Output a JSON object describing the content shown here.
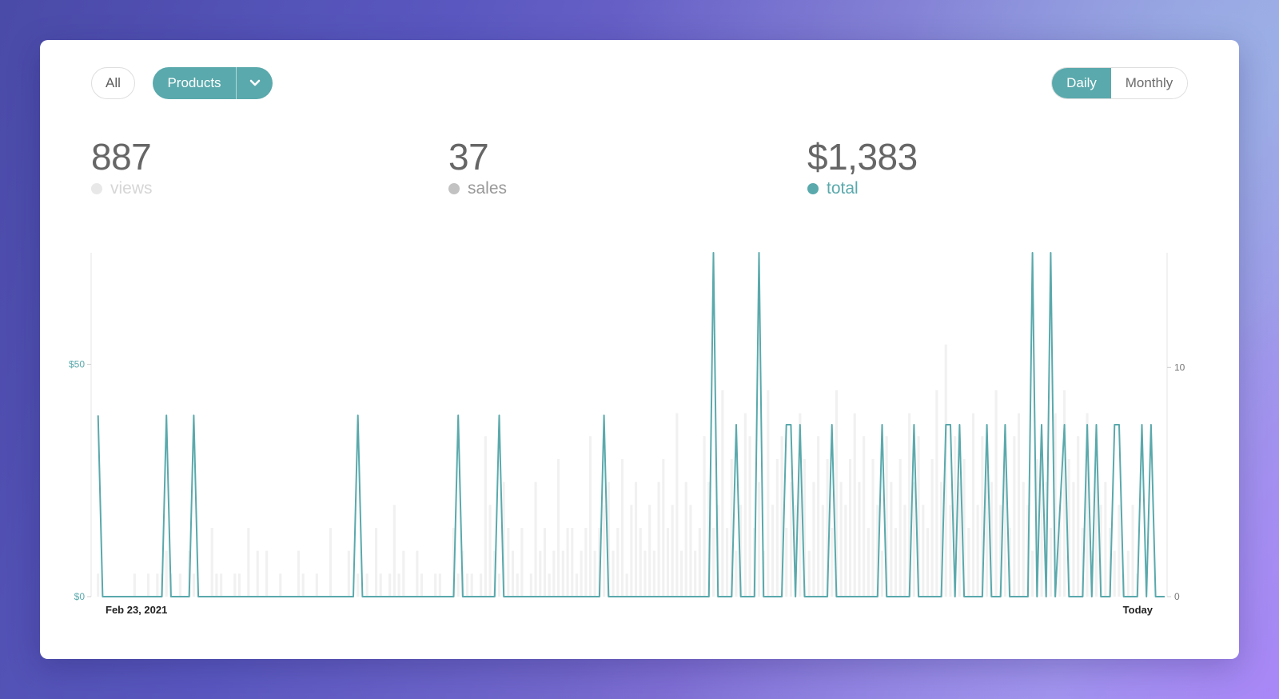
{
  "filters": {
    "all_label": "All",
    "products_label": "Products"
  },
  "period": {
    "daily_label": "Daily",
    "monthly_label": "Monthly"
  },
  "stats": [
    {
      "value": "887",
      "label": "views",
      "color": "#e8e8e8",
      "label_color": "#d6d6d6"
    },
    {
      "value": "37",
      "label": "sales",
      "color": "#c2c2c2",
      "label_color": "#999999"
    },
    {
      "value": "$1,383",
      "label": "total",
      "color": "#5aa9ac",
      "label_color": "#5aa9ac"
    }
  ],
  "colors": {
    "accent": "#5aa9ac",
    "bars": "#f1f1f1",
    "axis": "#e6e6e6"
  },
  "chart_data": {
    "type": "line",
    "x_start_label": "Feb 23, 2021",
    "x_end_label": "Today",
    "left_axis": {
      "ticks": [
        {
          "value": 0,
          "label": "$0"
        },
        {
          "value": 50,
          "label": "$50"
        }
      ],
      "range": [
        0,
        74
      ]
    },
    "right_axis": {
      "ticks": [
        {
          "value": 0,
          "label": "0"
        },
        {
          "value": 10,
          "label": "10"
        }
      ],
      "range": [
        0,
        15
      ]
    },
    "total_series": {
      "name": "total",
      "points": [
        [
          1,
          39
        ],
        [
          2,
          0
        ],
        [
          15,
          0
        ],
        [
          16,
          39
        ],
        [
          17,
          0
        ],
        [
          21,
          0
        ],
        [
          22,
          39
        ],
        [
          23,
          0
        ],
        [
          57,
          0
        ],
        [
          58,
          39
        ],
        [
          59,
          0
        ],
        [
          79,
          0
        ],
        [
          80,
          39
        ],
        [
          81,
          0
        ],
        [
          88,
          0
        ],
        [
          89,
          39
        ],
        [
          90,
          0
        ],
        [
          111,
          0
        ],
        [
          112,
          39
        ],
        [
          113,
          0
        ],
        [
          135,
          0
        ],
        [
          136,
          74
        ],
        [
          137,
          0
        ],
        [
          140,
          0
        ],
        [
          141,
          37
        ],
        [
          142,
          0
        ],
        [
          145,
          0
        ],
        [
          146,
          74
        ],
        [
          147,
          0
        ],
        [
          151,
          0
        ],
        [
          152,
          37
        ],
        [
          153,
          37
        ],
        [
          154,
          0
        ],
        [
          155,
          37
        ],
        [
          156,
          0
        ],
        [
          161,
          0
        ],
        [
          162,
          37
        ],
        [
          163,
          0
        ],
        [
          172,
          0
        ],
        [
          173,
          37
        ],
        [
          174,
          0
        ],
        [
          179,
          0
        ],
        [
          180,
          37
        ],
        [
          181,
          0
        ],
        [
          186,
          0
        ],
        [
          187,
          37
        ],
        [
          188,
          37
        ],
        [
          189,
          0
        ],
        [
          190,
          37
        ],
        [
          191,
          0
        ],
        [
          195,
          0
        ],
        [
          196,
          37
        ],
        [
          197,
          0
        ],
        [
          199,
          0
        ],
        [
          200,
          37
        ],
        [
          201,
          0
        ],
        [
          205,
          0
        ],
        [
          206,
          74
        ],
        [
          207,
          0
        ],
        [
          208,
          37
        ],
        [
          209,
          0
        ],
        [
          210,
          74
        ],
        [
          211,
          0
        ],
        [
          213,
          37
        ],
        [
          214,
          0
        ],
        [
          217,
          0
        ],
        [
          218,
          37
        ],
        [
          219,
          0
        ],
        [
          220,
          37
        ],
        [
          221,
          0
        ],
        [
          223,
          0
        ],
        [
          224,
          37
        ],
        [
          225,
          37
        ],
        [
          226,
          0
        ],
        [
          229,
          0
        ],
        [
          230,
          37
        ],
        [
          231,
          0
        ],
        [
          232,
          37
        ],
        [
          233,
          0
        ],
        [
          235,
          0
        ]
      ]
    },
    "views_series": {
      "name": "views",
      "values": [
        0,
        1,
        0,
        0,
        0,
        0,
        0,
        0,
        0,
        1,
        0,
        0,
        1,
        0,
        1,
        1,
        2,
        1,
        0,
        1,
        0,
        2,
        1,
        0,
        0,
        0,
        3,
        1,
        1,
        0,
        0,
        1,
        1,
        0,
        3,
        0,
        2,
        0,
        2,
        0,
        0,
        1,
        0,
        0,
        0,
        2,
        1,
        0,
        0,
        1,
        0,
        0,
        3,
        0,
        0,
        0,
        2,
        0,
        1,
        0,
        1,
        0,
        3,
        1,
        0,
        1,
        4,
        1,
        2,
        0,
        0,
        2,
        1,
        0,
        0,
        1,
        1,
        0,
        0,
        3,
        1,
        2,
        1,
        1,
        0,
        1,
        7,
        4,
        2,
        1,
        5,
        3,
        2,
        1,
        3,
        0,
        1,
        5,
        2,
        3,
        1,
        2,
        6,
        2,
        3,
        3,
        1,
        2,
        3,
        7,
        2,
        3,
        4,
        5,
        2,
        3,
        6,
        1,
        4,
        5,
        3,
        2,
        4,
        2,
        5,
        6,
        3,
        4,
        8,
        2,
        5,
        4,
        2,
        3,
        7,
        5,
        3,
        4,
        9,
        3,
        6,
        2,
        4,
        8,
        7,
        3,
        5,
        2,
        9,
        4,
        6,
        7,
        3,
        5,
        4,
        8,
        6,
        2,
        5,
        7,
        4,
        6,
        3,
        9,
        5,
        4,
        6,
        8,
        5,
        7,
        3,
        6,
        4,
        2,
        7,
        5,
        3,
        6,
        4,
        8,
        5,
        7,
        4,
        3,
        6,
        9,
        5,
        11,
        4,
        7,
        5,
        6,
        3,
        8,
        4,
        7,
        6,
        5,
        9,
        4,
        6,
        3,
        7,
        8,
        5,
        4,
        2,
        6,
        7,
        5,
        3,
        8,
        4,
        9,
        6,
        5,
        7,
        3,
        8,
        2,
        6,
        4,
        5,
        3,
        2,
        4,
        1,
        2,
        4,
        1,
        0
      ]
    }
  }
}
